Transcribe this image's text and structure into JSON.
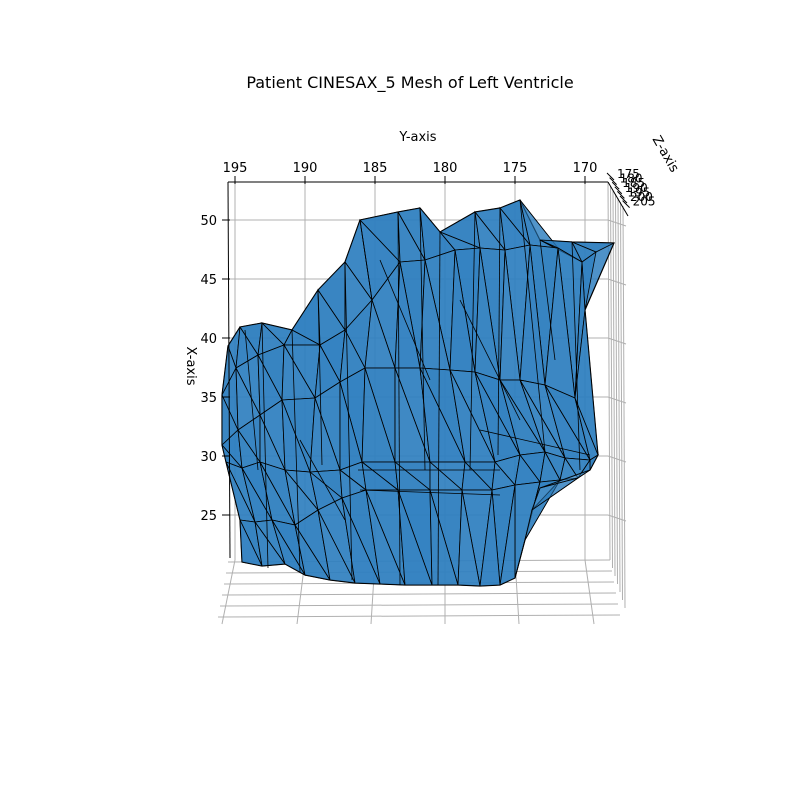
{
  "chart_data": {
    "type": "mesh3d",
    "title": "Patient CINESAX_5 Mesh of Left Ventricle",
    "xlabel": "X-axis",
    "ylabel": "Y-axis",
    "zlabel": "Z-axis",
    "x_ticks": [
      "25",
      "30",
      "35",
      "40",
      "45",
      "50"
    ],
    "y_ticks": [
      "195",
      "190",
      "185",
      "180",
      "175",
      "170"
    ],
    "z_ticks": [
      "175",
      "180",
      "185",
      "190",
      "195",
      "200",
      "205"
    ],
    "xlim": [
      21,
      52
    ],
    "ylim": [
      197,
      169
    ],
    "zlim": [
      175,
      205
    ],
    "grid": true,
    "colors": {
      "face": "#2f7fbf",
      "edge": "#000000",
      "grid": "#b0b0b0"
    }
  }
}
